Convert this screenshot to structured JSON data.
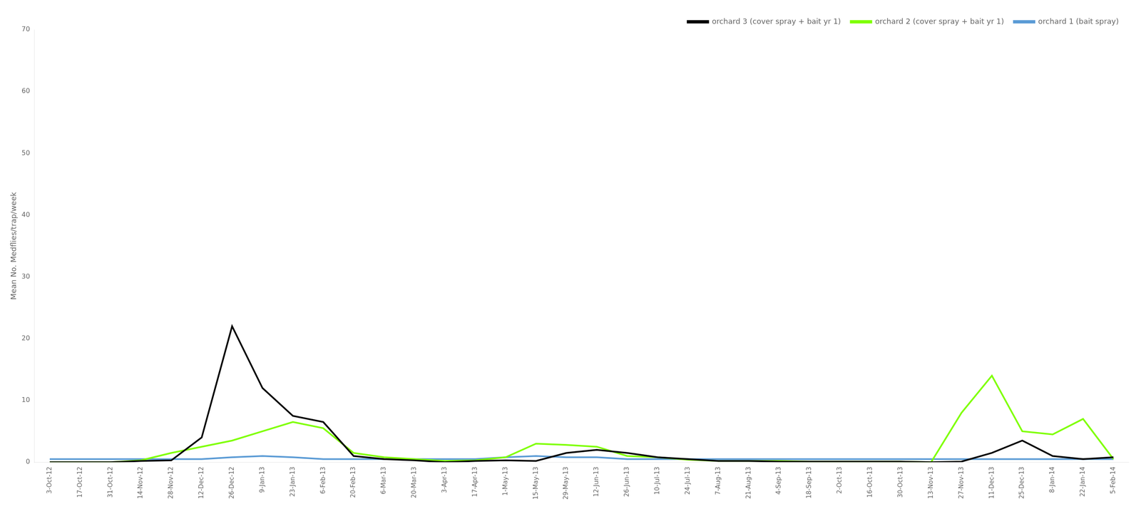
{
  "chart_data": {
    "type": "line",
    "categories": [
      "3-Oct-12",
      "17-Oct-12",
      "31-Oct-12",
      "14-Nov-12",
      "28-Nov-12",
      "12-Dec-12",
      "26-Dec-12",
      "9-Jan-13",
      "23-Jan-13",
      "6-Feb-13",
      "20-Feb-13",
      "6-Mar-13",
      "20-Mar-13",
      "3-Apr-13",
      "17-Apr-13",
      "1-May-13",
      "15-May-13",
      "29-May-13",
      "12-Jun-13",
      "26-Jun-13",
      "10-Jul-13",
      "24-Jul-13",
      "7-Aug-13",
      "21-Aug-13",
      "4-Sep-13",
      "18-Sep-13",
      "2-Oct-13",
      "16-Oct-13",
      "30-Oct-13",
      "13-Nov-13",
      "27-Nov-13",
      "11-Dec-13",
      "25-Dec-13",
      "8-Jan-14",
      "22-Jan-14",
      "5-Feb-14"
    ],
    "series": [
      {
        "name": "orchard 3 (cover spray + bait yr 1)",
        "color": "#000000",
        "values": [
          0.0,
          0.0,
          0.0,
          0.2,
          0.3,
          4.0,
          22.0,
          12.0,
          7.5,
          6.5,
          1.0,
          0.5,
          0.3,
          0.0,
          0.2,
          0.3,
          0.2,
          1.5,
          2.0,
          1.5,
          0.8,
          0.5,
          0.2,
          0.2,
          0.1,
          0.1,
          0.1,
          0.1,
          0.1,
          0.0,
          0.1,
          1.5,
          3.5,
          1.0,
          0.5,
          0.8
        ]
      },
      {
        "name": "orchard 2 (cover spray + bait yr 1)",
        "color": "#7FFF00",
        "values": [
          0.0,
          0.0,
          0.0,
          0.3,
          1.5,
          2.5,
          3.5,
          5.0,
          6.5,
          5.5,
          1.5,
          0.8,
          0.5,
          0.2,
          0.3,
          0.8,
          3.0,
          2.8,
          2.5,
          1.0,
          0.8,
          0.4,
          0.2,
          0.2,
          0.2,
          0.1,
          0.1,
          0.1,
          0.1,
          0.0,
          8.0,
          14.0,
          5.0,
          4.5,
          7.0,
          0.5
        ]
      },
      {
        "name": "orchard 1 (bait spray)",
        "color": "#5B9BD5",
        "values": [
          0.5,
          0.5,
          0.5,
          0.5,
          0.5,
          0.5,
          0.8,
          1.0,
          0.8,
          0.5,
          0.5,
          0.5,
          0.5,
          0.5,
          0.5,
          0.8,
          1.0,
          0.8,
          0.8,
          0.5,
          0.5,
          0.5,
          0.5,
          0.5,
          0.5,
          0.5,
          0.5,
          0.5,
          0.5,
          0.5,
          0.5,
          0.5,
          0.5,
          0.5,
          0.5,
          0.5
        ]
      }
    ],
    "ylabel": "Mean No. Medflies/trap/week",
    "ylim": [
      0,
      70
    ],
    "yticks": [
      0,
      10,
      20,
      30,
      40,
      50,
      60,
      70
    ],
    "grid": false,
    "legend": "upper right"
  }
}
